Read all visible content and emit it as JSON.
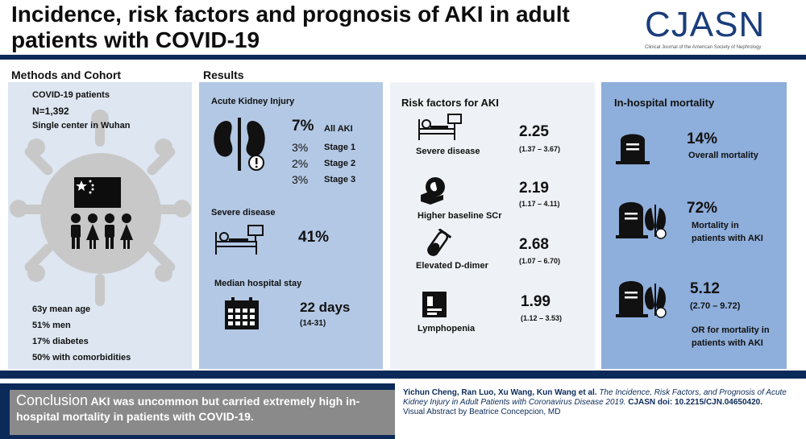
{
  "header": {
    "title": "Incidence, risk factors and prognosis of AKI in adult patients with COVID-19",
    "logo": "CJASN",
    "logo_sub": "Clinical Journal of the American Society of Nephrology"
  },
  "methods": {
    "heading": "Methods and Cohort",
    "cohort_label": "COVID-19 patients",
    "n": "N=1,392",
    "site": "Single center in Wuhan",
    "stats": [
      "63y mean age",
      "51% men",
      "17% diabetes",
      "50% with comorbidities"
    ]
  },
  "results": {
    "heading": "Results",
    "aki": {
      "title": "Acute Kidney Injury",
      "all_value": "7%",
      "all_label": "All AKI",
      "stages": [
        {
          "value": "3%",
          "label": "Stage 1"
        },
        {
          "value": "2%",
          "label": "Stage 2"
        },
        {
          "value": "3%",
          "label": "Stage 3"
        }
      ]
    },
    "severe": {
      "title": "Severe disease",
      "value": "41%"
    },
    "stay": {
      "title": "Median hospital stay",
      "value": "22 days",
      "range": "(14-31)"
    }
  },
  "risk": {
    "heading": "Risk factors for AKI",
    "items": [
      {
        "label": "Severe disease",
        "value": "2.25",
        "ci": "(1.37 – 3.67)"
      },
      {
        "label": "Higher baseline SCr",
        "value": "2.19",
        "ci": "(1.17 – 4.11)"
      },
      {
        "label": "Elevated D-dimer",
        "value": "2.68",
        "ci": "(1.07 – 6.70)"
      },
      {
        "label": "Lymphopenia",
        "value": "1.99",
        "ci": "(1.12 – 3.53)"
      }
    ]
  },
  "mortality": {
    "heading": "In-hospital mortality",
    "overall": {
      "value": "14%",
      "label": "Overall mortality"
    },
    "aki": {
      "value": "72%",
      "label1": "Mortality in",
      "label2": "patients with AKI"
    },
    "or": {
      "value": "5.12",
      "ci": "(2.70 – 9.72)",
      "label1": "OR for mortality in",
      "label2": "patients with AKI"
    }
  },
  "conclusion": {
    "word": "Conclusion",
    "text": "AKI was uncommon but carried extremely high in-hospital mortality in patients with COVID-19."
  },
  "citation": {
    "authors": "Yichun Cheng, Ran Luo, Xu Wang, Kun Wang et al.",
    "title": "The Incidence, Risk Factors, and Prognosis of Acute Kidney Injury in Adult Patients with Coronavirus Disease 2019.",
    "doi": "CJASN doi: 10.2215/CJN.04650420.",
    "credit": "Visual Abstract by Beatrice Concepcion, MD"
  }
}
